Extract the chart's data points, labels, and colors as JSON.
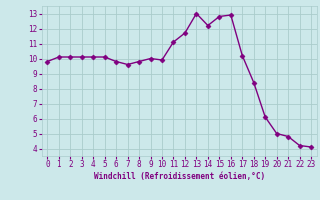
{
  "x": [
    0,
    1,
    2,
    3,
    4,
    5,
    6,
    7,
    8,
    9,
    10,
    11,
    12,
    13,
    14,
    15,
    16,
    17,
    18,
    19,
    20,
    21,
    22,
    23
  ],
  "y": [
    9.8,
    10.1,
    10.1,
    10.1,
    10.1,
    10.1,
    9.8,
    9.6,
    9.8,
    10.0,
    9.9,
    11.1,
    11.7,
    13.0,
    12.2,
    12.8,
    12.9,
    10.2,
    8.4,
    6.1,
    5.0,
    4.8,
    4.2,
    4.1
  ],
  "line_color": "#800080",
  "marker": "D",
  "marker_size": 2.5,
  "bg_color": "#cce8ea",
  "grid_color": "#aacccc",
  "xlabel": "Windchill (Refroidissement éolien,°C)",
  "ylabel_ticks": [
    4,
    5,
    6,
    7,
    8,
    9,
    10,
    11,
    12,
    13
  ],
  "xlim": [
    -0.5,
    23.5
  ],
  "ylim": [
    3.5,
    13.5
  ],
  "xlabel_color": "#800080",
  "tick_color": "#800080",
  "line_width": 1.0,
  "tick_fontsize": 5.5,
  "xlabel_fontsize": 5.5
}
